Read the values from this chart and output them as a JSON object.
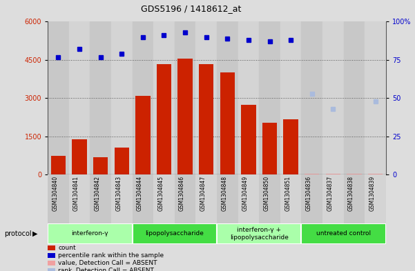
{
  "title": "GDS5196 / 1418612_at",
  "samples": [
    "GSM1304840",
    "GSM1304841",
    "GSM1304842",
    "GSM1304843",
    "GSM1304844",
    "GSM1304845",
    "GSM1304846",
    "GSM1304847",
    "GSM1304848",
    "GSM1304849",
    "GSM1304850",
    "GSM1304851",
    "GSM1304836",
    "GSM1304837",
    "GSM1304838",
    "GSM1304839"
  ],
  "bar_values": [
    750,
    1380,
    680,
    1060,
    3100,
    4350,
    4560,
    4350,
    4000,
    2750,
    2050,
    2180,
    28,
    28,
    28,
    28
  ],
  "bar_absent": [
    false,
    false,
    false,
    false,
    false,
    false,
    false,
    false,
    false,
    false,
    false,
    false,
    true,
    true,
    true,
    true
  ],
  "bar_color_present": "#cc2200",
  "bar_color_absent": "#f0a0a0",
  "dot_values_pct": [
    77,
    82,
    77,
    79,
    90,
    91,
    93,
    90,
    89,
    88,
    87,
    88,
    null,
    null,
    null,
    null
  ],
  "dot_absent_pct": [
    null,
    null,
    null,
    null,
    null,
    null,
    null,
    null,
    null,
    null,
    null,
    null,
    53,
    43,
    null,
    48
  ],
  "dot_color_present": "#0000cc",
  "dot_color_absent": "#aabbdd",
  "ylim_left": [
    0,
    6000
  ],
  "ylim_right": [
    0,
    100
  ],
  "yticks_left": [
    0,
    1500,
    3000,
    4500,
    6000
  ],
  "yticks_right": [
    0,
    25,
    50,
    75,
    100
  ],
  "ylabel_left_color": "#cc2200",
  "ylabel_right_color": "#0000cc",
  "groups": [
    {
      "label": "interferon-γ",
      "start": 0,
      "end": 4,
      "color": "#aaffaa"
    },
    {
      "label": "lipopolysaccharide",
      "start": 4,
      "end": 8,
      "color": "#44dd44"
    },
    {
      "label": "interferon-γ +\nlipopolysaccharide",
      "start": 8,
      "end": 12,
      "color": "#aaffaa"
    },
    {
      "label": "untreated control",
      "start": 12,
      "end": 16,
      "color": "#44dd44"
    }
  ],
  "background_color": "#dddddd",
  "plot_bg_color": "#ffffff",
  "grid_color": "#555555",
  "col_shading_even": "#c8c8c8",
  "col_shading_odd": "#d4d4d4"
}
